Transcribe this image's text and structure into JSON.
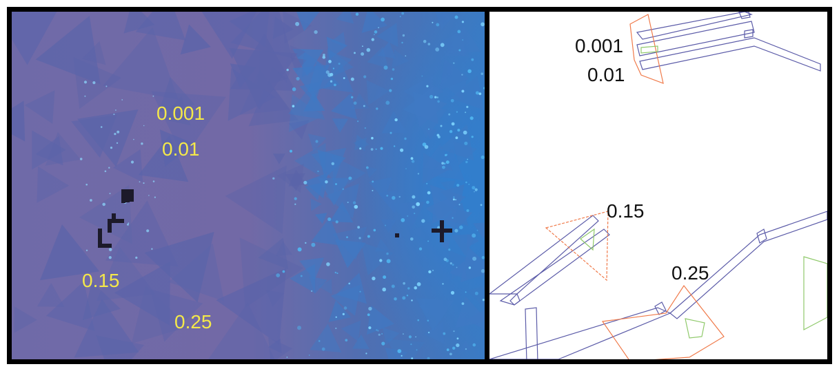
{
  "left_panel": {
    "label_color": "#f4e84a",
    "labels": {
      "l1": "0.001",
      "l2": "0.01",
      "l3": "0.15",
      "l4": "0.25"
    }
  },
  "right_panel": {
    "label_color": "#111111",
    "outline_colors": {
      "device": "#5b5ba8",
      "flake": "#f07a4a",
      "inner": "#8fc96a"
    },
    "labels": {
      "l1": "0.001",
      "l2": "0.01",
      "l3": "0.15",
      "l4": "0.25"
    }
  }
}
